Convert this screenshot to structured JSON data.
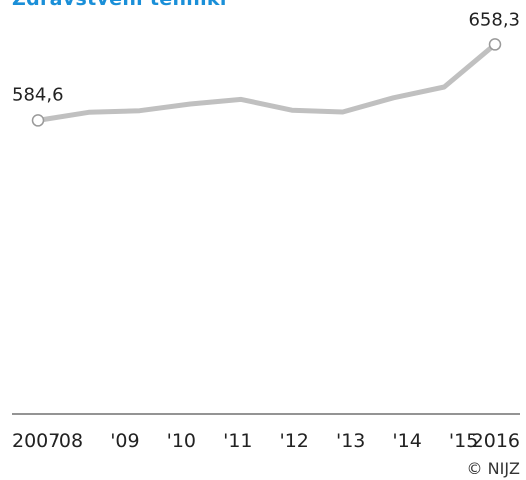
{
  "chart_data": {
    "type": "line",
    "title": "Zdravstveni tehniki",
    "x": [
      "2007",
      "'08",
      "'09",
      "'10",
      "'11",
      "'12",
      "'13",
      "'14",
      "'15",
      "2016"
    ],
    "series": [
      {
        "values": [
          584.6,
          592.5,
          594,
          600.5,
          605,
          594.5,
          592.8,
          606.5,
          617,
          658.3
        ]
      }
    ],
    "endpoint_labels": [
      "584,6",
      "658,3"
    ],
    "ylim": [
      300,
      680
    ],
    "grid": false,
    "line_color": "#c0c0c0",
    "title_color": "#1a8fd8",
    "axis_color": "#555555"
  },
  "source": "© NIJZ"
}
